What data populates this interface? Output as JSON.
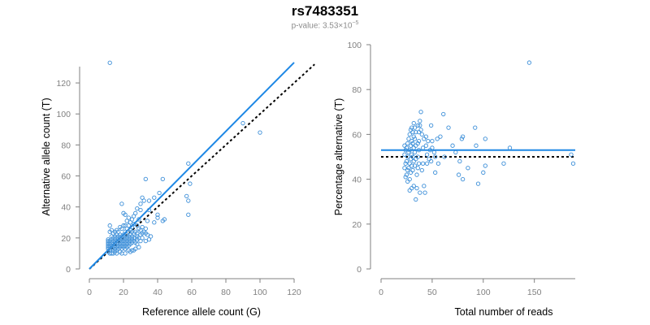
{
  "header": {
    "title": "rs7483351",
    "pvalue_prefix": "p-value: 3.53×10",
    "pvalue_exp": "−5"
  },
  "colors": {
    "points": "#3b8ed8",
    "fit": "#1e88e5",
    "reference": "#000000",
    "axis": "#808080"
  },
  "chart_data": [
    {
      "type": "scatter",
      "title": "",
      "xlabel": "Reference allele count (G)",
      "ylabel": "Alternative allele count (T)",
      "xlim": [
        0,
        120
      ],
      "ylim": [
        0,
        130
      ],
      "xticks": [
        0,
        20,
        40,
        60,
        80,
        100,
        120
      ],
      "yticks": [
        0,
        20,
        40,
        60,
        80,
        100,
        120
      ],
      "fit_line": {
        "slope": 1.11,
        "intercept": 0,
        "x_range": [
          0,
          120
        ]
      },
      "reference_line": {
        "slope": 1,
        "intercept": 0,
        "x_range": [
          0,
          132
        ]
      },
      "points": [
        [
          12,
          133
        ],
        [
          90,
          94
        ],
        [
          100,
          88
        ],
        [
          58,
          68
        ],
        [
          59,
          55
        ],
        [
          57,
          47
        ],
        [
          58,
          44
        ],
        [
          58,
          35
        ],
        [
          33,
          58
        ],
        [
          43,
          58
        ],
        [
          41,
          49
        ],
        [
          38,
          46
        ],
        [
          31,
          46
        ],
        [
          32,
          44
        ],
        [
          30,
          42
        ],
        [
          35,
          44
        ],
        [
          40,
          35
        ],
        [
          40,
          33
        ],
        [
          43,
          31
        ],
        [
          44,
          32
        ],
        [
          38,
          30
        ],
        [
          34,
          31
        ],
        [
          35,
          38
        ],
        [
          29,
          32
        ],
        [
          28,
          39
        ],
        [
          30,
          38
        ],
        [
          27,
          36
        ],
        [
          26,
          34
        ],
        [
          25,
          32
        ],
        [
          19,
          42
        ],
        [
          20,
          36
        ],
        [
          21,
          35
        ],
        [
          23,
          33
        ],
        [
          22,
          31
        ],
        [
          24,
          30
        ],
        [
          26,
          29
        ],
        [
          28,
          28
        ],
        [
          29,
          26
        ],
        [
          31,
          27
        ],
        [
          31,
          23
        ],
        [
          33,
          23
        ],
        [
          34,
          22
        ],
        [
          36,
          21
        ],
        [
          35,
          19
        ],
        [
          33,
          18
        ],
        [
          30,
          18
        ],
        [
          28,
          16
        ],
        [
          29,
          14
        ],
        [
          27,
          13
        ],
        [
          26,
          12
        ],
        [
          25,
          12
        ],
        [
          24,
          11
        ],
        [
          23,
          12
        ],
        [
          21,
          10
        ],
        [
          19,
          10
        ],
        [
          18,
          11
        ],
        [
          16,
          10
        ],
        [
          15,
          11
        ],
        [
          14,
          10
        ],
        [
          13,
          10
        ],
        [
          12,
          10
        ],
        [
          11,
          11
        ],
        [
          11,
          13
        ],
        [
          11,
          14
        ],
        [
          11,
          15
        ],
        [
          11,
          16
        ],
        [
          11,
          17
        ],
        [
          11,
          18
        ],
        [
          11,
          19
        ],
        [
          12,
          12
        ],
        [
          12,
          14
        ],
        [
          12,
          16
        ],
        [
          12,
          18
        ],
        [
          13,
          13
        ],
        [
          13,
          15
        ],
        [
          13,
          17
        ],
        [
          13,
          19
        ],
        [
          13,
          21
        ],
        [
          14,
          12
        ],
        [
          14,
          14
        ],
        [
          14,
          16
        ],
        [
          14,
          18
        ],
        [
          14,
          20
        ],
        [
          15,
          13
        ],
        [
          15,
          15
        ],
        [
          15,
          17
        ],
        [
          15,
          19
        ],
        [
          15,
          21
        ],
        [
          16,
          12
        ],
        [
          16,
          14
        ],
        [
          16,
          16
        ],
        [
          16,
          18
        ],
        [
          16,
          20
        ],
        [
          16,
          22
        ],
        [
          17,
          13
        ],
        [
          17,
          15
        ],
        [
          17,
          17
        ],
        [
          17,
          19
        ],
        [
          17,
          21
        ],
        [
          18,
          14
        ],
        [
          18,
          16
        ],
        [
          18,
          18
        ],
        [
          18,
          20
        ],
        [
          18,
          22
        ],
        [
          19,
          13
        ],
        [
          19,
          15
        ],
        [
          19,
          17
        ],
        [
          19,
          19
        ],
        [
          19,
          21
        ],
        [
          20,
          14
        ],
        [
          20,
          16
        ],
        [
          20,
          18
        ],
        [
          20,
          20
        ],
        [
          20,
          22
        ],
        [
          21,
          13
        ],
        [
          21,
          15
        ],
        [
          21,
          17
        ],
        [
          21,
          19
        ],
        [
          21,
          21
        ],
        [
          21,
          24
        ],
        [
          22,
          14
        ],
        [
          22,
          16
        ],
        [
          22,
          18
        ],
        [
          22,
          20
        ],
        [
          22,
          22
        ],
        [
          22,
          26
        ],
        [
          23,
          15
        ],
        [
          23,
          17
        ],
        [
          23,
          19
        ],
        [
          23,
          21
        ],
        [
          23,
          24
        ],
        [
          23,
          28
        ],
        [
          24,
          16
        ],
        [
          24,
          18
        ],
        [
          24,
          20
        ],
        [
          24,
          22
        ],
        [
          24,
          25
        ],
        [
          25,
          17
        ],
        [
          25,
          19
        ],
        [
          25,
          21
        ],
        [
          25,
          24
        ],
        [
          25,
          27
        ],
        [
          26,
          18
        ],
        [
          26,
          20
        ],
        [
          26,
          23
        ],
        [
          27,
          17
        ],
        [
          27,
          20
        ],
        [
          27,
          24
        ],
        [
          28,
          19
        ],
        [
          28,
          21
        ],
        [
          28,
          23
        ],
        [
          29,
          20
        ],
        [
          30,
          22
        ],
        [
          30,
          25
        ],
        [
          31,
          20
        ],
        [
          32,
          24
        ],
        [
          33,
          26
        ],
        [
          12,
          28
        ],
        [
          12,
          24
        ],
        [
          13,
          25
        ],
        [
          14,
          23
        ],
        [
          15,
          24
        ],
        [
          16,
          25
        ],
        [
          17,
          24
        ],
        [
          18,
          27
        ],
        [
          19,
          26
        ],
        [
          20,
          28
        ],
        [
          21,
          28
        ]
      ]
    },
    {
      "type": "scatter",
      "title": "",
      "xlabel": "Total number of reads",
      "ylabel": "Percentage alternative (T)",
      "xlim": [
        0,
        190
      ],
      "ylim": [
        0,
        100
      ],
      "xticks": [
        0,
        50,
        100,
        150
      ],
      "yticks": [
        0,
        20,
        40,
        60,
        80,
        100
      ],
      "fit_line": {
        "y": 53,
        "x_range": [
          0,
          190
        ]
      },
      "reference_line": {
        "y": 50,
        "x_range": [
          0,
          190
        ]
      },
      "points": [
        [
          145,
          92
        ],
        [
          186,
          51
        ],
        [
          188,
          47
        ],
        [
          126,
          54
        ],
        [
          120,
          47
        ],
        [
          102,
          46
        ],
        [
          100,
          43
        ],
        [
          95,
          38
        ],
        [
          93,
          55
        ],
        [
          92,
          63
        ],
        [
          102,
          58
        ],
        [
          80,
          59
        ],
        [
          79,
          58
        ],
        [
          80,
          40
        ],
        [
          76,
          42
        ],
        [
          77,
          48
        ],
        [
          73,
          52
        ],
        [
          66,
          63
        ],
        [
          61,
          69
        ],
        [
          58,
          59
        ],
        [
          55,
          58
        ],
        [
          56,
          47
        ],
        [
          53,
          43
        ],
        [
          50,
          57
        ],
        [
          50,
          54
        ],
        [
          49,
          48
        ],
        [
          49,
          64
        ],
        [
          52,
          52
        ],
        [
          46,
          57
        ],
        [
          44,
          59
        ],
        [
          44,
          55
        ],
        [
          45,
          51
        ],
        [
          45,
          47
        ],
        [
          42,
          58
        ],
        [
          41,
          54
        ],
        [
          41,
          47
        ],
        [
          40,
          60
        ],
        [
          40,
          44
        ],
        [
          39,
          70
        ],
        [
          39,
          62
        ],
        [
          38,
          66
        ],
        [
          38,
          64
        ],
        [
          37,
          61
        ],
        [
          37,
          57
        ],
        [
          37,
          53
        ],
        [
          37,
          47
        ],
        [
          36,
          64
        ],
        [
          36,
          56
        ],
        [
          36,
          50
        ],
        [
          36,
          45
        ],
        [
          35,
          42
        ],
        [
          35,
          36
        ],
        [
          34,
          31
        ],
        [
          34,
          61
        ],
        [
          34,
          55
        ],
        [
          34,
          49
        ],
        [
          33,
          63
        ],
        [
          33,
          58
        ],
        [
          33,
          52
        ],
        [
          33,
          46
        ],
        [
          32,
          65
        ],
        [
          32,
          59
        ],
        [
          32,
          54
        ],
        [
          32,
          48
        ],
        [
          32,
          37
        ],
        [
          31,
          61
        ],
        [
          31,
          56
        ],
        [
          31,
          50
        ],
        [
          31,
          44
        ],
        [
          30,
          63
        ],
        [
          30,
          57
        ],
        [
          30,
          51
        ],
        [
          30,
          46
        ],
        [
          30,
          36
        ],
        [
          29,
          62
        ],
        [
          29,
          55
        ],
        [
          29,
          49
        ],
        [
          29,
          43
        ],
        [
          28,
          60
        ],
        [
          28,
          53
        ],
        [
          28,
          47
        ],
        [
          28,
          40
        ],
        [
          28,
          35
        ],
        [
          27,
          58
        ],
        [
          27,
          52
        ],
        [
          27,
          45
        ],
        [
          26,
          56
        ],
        [
          26,
          50
        ],
        [
          26,
          44
        ],
        [
          26,
          39
        ],
        [
          25,
          54
        ],
        [
          25,
          48
        ],
        [
          25,
          42
        ],
        [
          24,
          53
        ],
        [
          24,
          47
        ],
        [
          24,
          41
        ],
        [
          23,
          51
        ],
        [
          23,
          45
        ],
        [
          23,
          55
        ],
        [
          38,
          34
        ],
        [
          42,
          37
        ],
        [
          43,
          34
        ],
        [
          47,
          49
        ],
        [
          48,
          53
        ],
        [
          53,
          50
        ],
        [
          62,
          50
        ],
        [
          70,
          55
        ],
        [
          85,
          45
        ]
      ]
    }
  ]
}
